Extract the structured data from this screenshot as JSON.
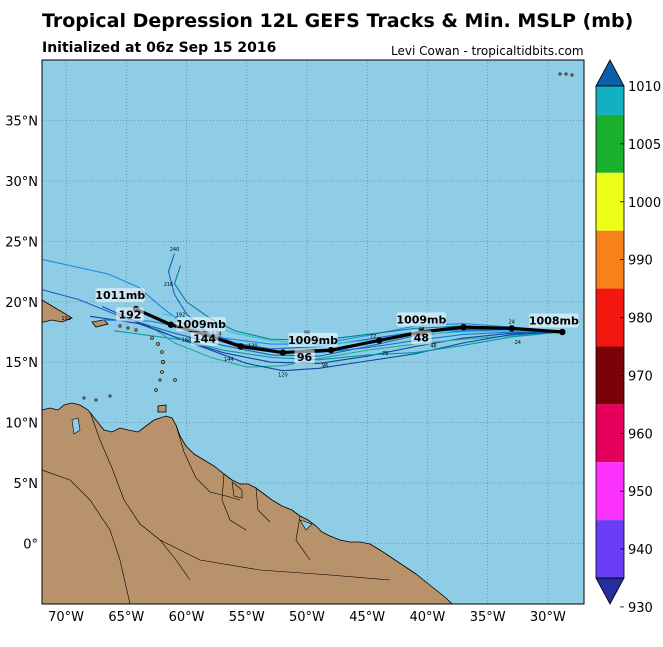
{
  "header": {
    "title": "Tropical Depression 12L GEFS Tracks & Min. MSLP (mb)",
    "subtitle": "Initialized at 06z Sep 15 2016",
    "credit": "Levi Cowan - tropicaltidbits.com"
  },
  "map": {
    "ocean_color": "#8fcde6",
    "land_color": "#b8926a",
    "lon_range": [
      -72,
      -27
    ],
    "lat_range": [
      -5,
      40
    ],
    "lon_ticks": [
      "70°W",
      "65°W",
      "60°W",
      "55°W",
      "50°W",
      "45°W",
      "40°W",
      "35°W",
      "30°W"
    ],
    "lat_ticks": [
      "0°",
      "5°N",
      "10°N",
      "15°N",
      "20°N",
      "25°N",
      "30°N",
      "35°N"
    ]
  },
  "colorbar": {
    "labels": [
      "1010",
      "1005",
      "1000",
      "990",
      "980",
      "970",
      "960",
      "950",
      "940",
      "930"
    ],
    "colors": [
      "#0a5fa8",
      "#13b0c0",
      "#19b02e",
      "#eefe16",
      "#f8821a",
      "#f4170f",
      "#7a0307",
      "#e6005d",
      "#fb32fb",
      "#6a3df7",
      "#252da0"
    ]
  },
  "mean_track": {
    "color": "#000000",
    "points": [
      [
        -28.8,
        17.5
      ],
      [
        -33,
        17.8
      ],
      [
        -37,
        17.9
      ],
      [
        -40.5,
        17.5
      ],
      [
        -44,
        16.8
      ],
      [
        -48,
        16.0
      ],
      [
        -52,
        15.8
      ],
      [
        -55.5,
        16.3
      ],
      [
        -58.5,
        17.3
      ],
      [
        -61.3,
        18.1
      ],
      [
        -64.2,
        19.4
      ]
    ],
    "labels": [
      {
        "text": "1008mb",
        "lon": -29.5,
        "lat": 18.2
      },
      {
        "text": "1009mb",
        "lon": -40.5,
        "lat": 18.3
      },
      {
        "text": "48",
        "lon": -40.5,
        "lat": 16.8
      },
      {
        "text": "1009mb",
        "lon": -49.5,
        "lat": 16.6
      },
      {
        "text": "96",
        "lon": -50.2,
        "lat": 15.2
      },
      {
        "text": "1009mb",
        "lon": -58.8,
        "lat": 17.9
      },
      {
        "text": "144",
        "lon": -58.5,
        "lat": 16.7
      },
      {
        "text": "1011mb",
        "lon": -65.5,
        "lat": 20.3
      },
      {
        "text": "192",
        "lon": -64.7,
        "lat": 18.7
      }
    ]
  },
  "member_hour_labels": [
    "24",
    "24",
    "48",
    "48",
    "72",
    "72",
    "96",
    "96",
    "120",
    "120",
    "144",
    "144",
    "168",
    "168",
    "192",
    "192",
    "216",
    "240"
  ]
}
